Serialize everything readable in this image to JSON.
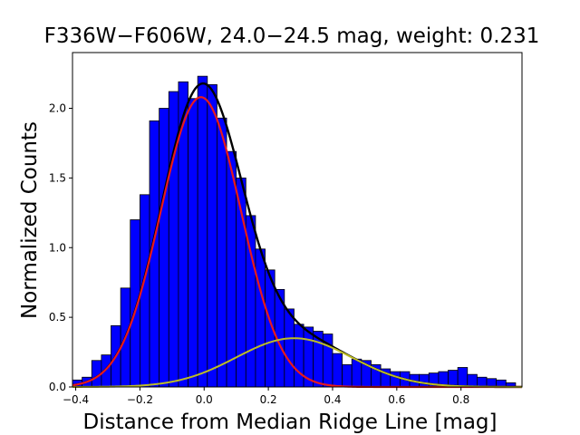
{
  "chart_data": {
    "type": "bar",
    "title": "F336W−F606W, 24.0−24.5 mag, weight: 0.231",
    "xlabel": "Distance from Median Ridge Line [mag]",
    "ylabel": "Normalized Counts",
    "xlim": [
      -0.41,
      0.99
    ],
    "ylim": [
      0,
      2.4
    ],
    "x_ticks": [
      -0.4,
      -0.2,
      0.0,
      0.2,
      0.4,
      0.6,
      0.8
    ],
    "x_tick_labels": [
      "−0.4",
      "−0.2",
      "0.0",
      "0.2",
      "0.4",
      "0.6",
      "0.8"
    ],
    "y_ticks": [
      0.0,
      0.5,
      1.0,
      1.5,
      2.0
    ],
    "y_tick_labels": [
      "0.0",
      "0.5",
      "1.0",
      "1.5",
      "2.0"
    ],
    "grid": false,
    "histogram": {
      "bin_edges": [
        -0.41,
        -0.38,
        -0.35,
        -0.32,
        -0.29,
        -0.26,
        -0.23,
        -0.2,
        -0.17,
        -0.14,
        -0.11,
        -0.08,
        -0.05,
        -0.02,
        0.01,
        0.04,
        0.07,
        0.1,
        0.13,
        0.16,
        0.19,
        0.22,
        0.25,
        0.28,
        0.31,
        0.34,
        0.37,
        0.4,
        0.43,
        0.46,
        0.49,
        0.52,
        0.55,
        0.58,
        0.61,
        0.64,
        0.67,
        0.7,
        0.73,
        0.76,
        0.79,
        0.82,
        0.85,
        0.88,
        0.91,
        0.94,
        0.97
      ],
      "counts": [
        0.05,
        0.07,
        0.19,
        0.23,
        0.44,
        0.71,
        1.2,
        1.38,
        1.91,
        2.0,
        2.12,
        2.19,
        2.07,
        2.23,
        2.17,
        1.93,
        1.69,
        1.5,
        1.23,
        0.99,
        0.84,
        0.7,
        0.56,
        0.45,
        0.43,
        0.4,
        0.38,
        0.24,
        0.16,
        0.2,
        0.19,
        0.16,
        0.13,
        0.11,
        0.11,
        0.09,
        0.09,
        0.1,
        0.11,
        0.12,
        0.14,
        0.09,
        0.07,
        0.06,
        0.05,
        0.03
      ]
    },
    "series": [
      {
        "kind": "curve",
        "color": "#000000",
        "width": 2.4,
        "components": [
          {
            "amp": 2.08,
            "mu": -0.01,
            "sigma": 0.125
          },
          {
            "amp": 0.35,
            "mu": 0.28,
            "sigma": 0.18
          }
        ]
      },
      {
        "kind": "curve",
        "color": "#e8191c",
        "width": 2.2,
        "components": [
          {
            "amp": 2.08,
            "mu": -0.01,
            "sigma": 0.125
          }
        ]
      },
      {
        "kind": "curve",
        "color": "#bdbd24",
        "width": 2.0,
        "components": [
          {
            "amp": 0.35,
            "mu": 0.28,
            "sigma": 0.18
          }
        ]
      }
    ],
    "bar_color": "#0000ff",
    "bar_edge_color": "#000000"
  }
}
